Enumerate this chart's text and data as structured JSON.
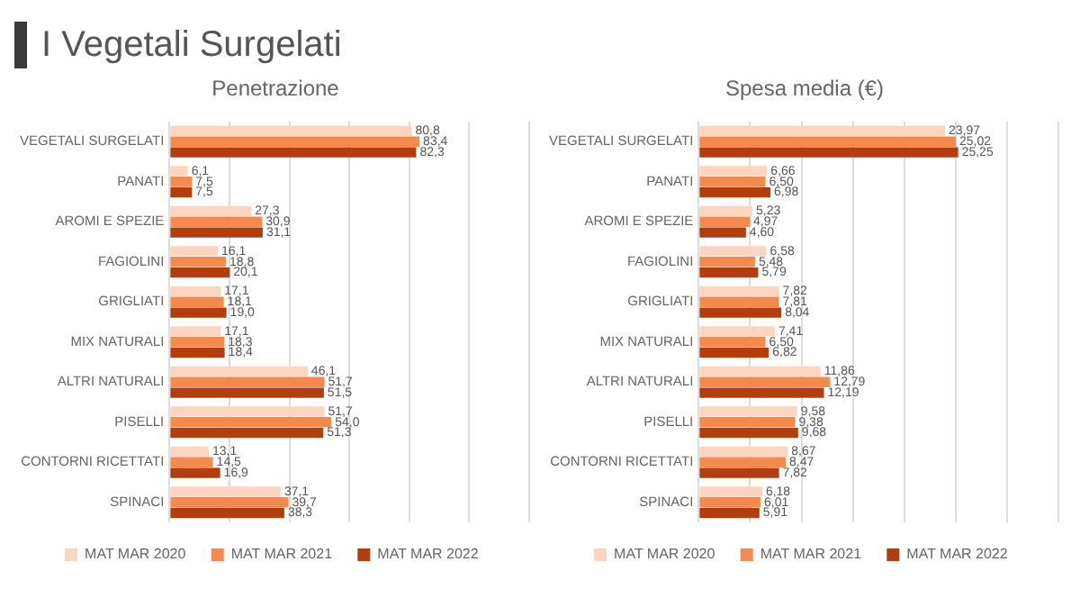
{
  "chart_data": [
    {
      "type": "bar",
      "orientation": "horizontal",
      "title": "I Vegetali Surgelati",
      "subtitle": "Penetrazione",
      "categories": [
        "VEGETALI SURGELATI",
        "PANATI",
        "AROMI E SPEZIE",
        "FAGIOLINI",
        "GRIGLIATI",
        "MIX NATURALI",
        "ALTRI NATURALI",
        "PISELLI",
        "CONTORNI RICETTATI",
        "SPINACI"
      ],
      "series": [
        {
          "name": "MAT MAR 2020",
          "color": "#fcd5c0",
          "values": [
            80.8,
            6.1,
            27.3,
            16.1,
            17.1,
            17.1,
            46.1,
            51.7,
            13.1,
            37.1
          ],
          "value_labels": [
            "80,8",
            "6,1",
            "27,3",
            "16,1",
            "17,1",
            "17,1",
            "46,1",
            "51,7",
            "13,1",
            "37,1"
          ]
        },
        {
          "name": "MAT MAR 2021",
          "color": "#f58a4f",
          "values": [
            83.4,
            7.5,
            30.9,
            18.8,
            18.1,
            18.3,
            51.7,
            54.0,
            14.5,
            39.7
          ],
          "value_labels": [
            "83,4",
            "7,5",
            "30,9",
            "18,8",
            "18,1",
            "18,3",
            "51,7",
            "54,0",
            "14,5",
            "39,7"
          ]
        },
        {
          "name": "MAT MAR 2022",
          "color": "#b33d0c",
          "values": [
            82.3,
            7.5,
            31.1,
            20.1,
            19.0,
            18.4,
            51.5,
            51.3,
            16.9,
            38.3
          ],
          "value_labels": [
            "82,3",
            "7,5",
            "31,1",
            "20,1",
            "19,0",
            "18,4",
            "51,5",
            "51,3",
            "16,9",
            "38,3"
          ]
        }
      ],
      "xlim": [
        0,
        120
      ],
      "xticks": [
        {
          "value": 0,
          "label": null
        },
        {
          "value": 20,
          "label": null
        },
        {
          "value": 40,
          "label": null
        },
        {
          "value": 60,
          "label": null
        },
        {
          "value": 80,
          "label": null
        },
        {
          "value": 100,
          "label": null
        },
        {
          "value": 120,
          "label": null
        }
      ],
      "grid": "x",
      "legend": "bottom",
      "tick_labels": "y"
    },
    {
      "type": "bar",
      "orientation": "horizontal",
      "title": "Spesa media (€)",
      "categories": [
        "VEGETALI SURGELATI",
        "PANATI",
        "AROMI E SPEZIE",
        "FAGIOLINI",
        "GRIGLIATI",
        "MIX NATURALI",
        "ALTRI NATURALI",
        "PISELLI",
        "CONTORNI RICETTATI",
        "SPINACI"
      ],
      "series": [
        {
          "name": "MAT MAR 2020",
          "color": "#fcd5c0",
          "values": [
            23.97,
            6.66,
            5.23,
            6.58,
            7.82,
            7.41,
            11.86,
            9.58,
            8.67,
            6.18
          ],
          "value_labels": [
            "23,97",
            "6,66",
            "5,23",
            "6,58",
            "7,82",
            "7,41",
            "11,86",
            "9,58",
            "8,67",
            "6,18"
          ]
        },
        {
          "name": "MAT MAR 2021",
          "color": "#f58a4f",
          "values": [
            25.02,
            6.5,
            4.97,
            5.48,
            7.81,
            6.5,
            12.79,
            9.38,
            8.47,
            6.01
          ],
          "value_labels": [
            "25,02",
            "6,50",
            "4,97",
            "5,48",
            "7,81",
            "6,50",
            "12,79",
            "9,38",
            "8,47",
            "6,01"
          ]
        },
        {
          "name": "MAT MAR 2022",
          "color": "#b33d0c",
          "values": [
            25.25,
            6.98,
            4.6,
            5.79,
            8.04,
            6.82,
            12.19,
            9.68,
            7.82,
            5.91
          ],
          "value_labels": [
            "25,25",
            "6,98",
            "4,60",
            "5,79",
            "8,04",
            "6,82",
            "12,19",
            "9,68",
            "7,82",
            "5,91"
          ]
        }
      ],
      "xlim": [
        0,
        35
      ],
      "xticks": [
        {
          "value": 0,
          "label": null
        },
        {
          "value": 5,
          "label": null
        },
        {
          "value": 10,
          "label": null
        },
        {
          "value": 15,
          "label": null
        },
        {
          "value": 20,
          "label": null
        },
        {
          "value": 25,
          "label": null
        },
        {
          "value": 30,
          "label": null
        },
        {
          "value": 35,
          "label": null
        }
      ],
      "grid": "x",
      "legend": "bottom",
      "tick_labels": "y"
    }
  ]
}
